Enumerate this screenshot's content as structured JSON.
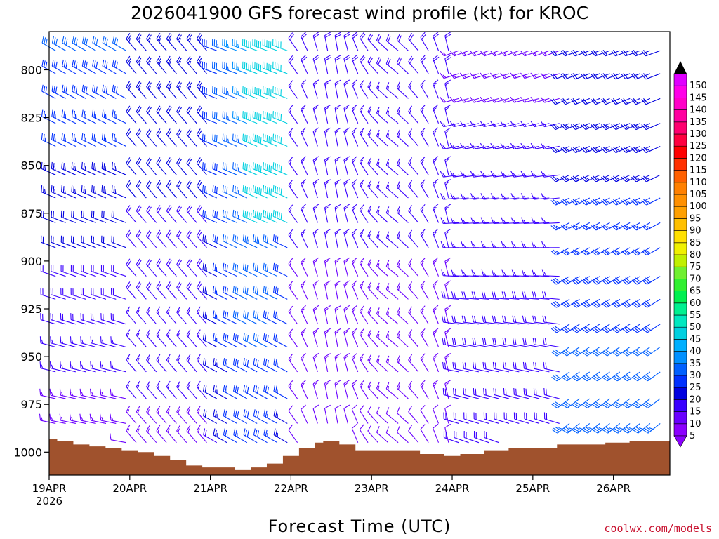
{
  "chart_data": {
    "type": "wind_barb_profile",
    "title": "2026041900 GFS forecast wind profile (kt) for KROC",
    "xlabel": "Forecast Time (UTC)",
    "ylabel": "",
    "credit": "coolwx.com/models",
    "y_axis": {
      "unit": "hPa",
      "range": [
        780,
        1012
      ],
      "ticks": [
        800,
        825,
        850,
        875,
        900,
        925,
        950,
        975,
        1000
      ],
      "tick_labels": [
        "800",
        "825",
        "850",
        "875",
        "900",
        "925",
        "950",
        "975",
        "1000"
      ]
    },
    "x_axis": {
      "unit": "days since 19APR 00Z",
      "range": [
        0,
        7.7
      ],
      "ticks": [
        0,
        1,
        2,
        3,
        4,
        5,
        6,
        7
      ],
      "tick_labels": [
        "19APR",
        "20APR",
        "21APR",
        "22APR",
        "23APR",
        "24APR",
        "25APR",
        "26APR"
      ],
      "year_label": "2026"
    },
    "levels_hpa": [
      790,
      802,
      815,
      828,
      840,
      855,
      867,
      880,
      893,
      908,
      920,
      933,
      945,
      958,
      972,
      985,
      995
    ],
    "time_step_days": 0.125,
    "terrain_surface_hpa": [
      [
        0,
        993
      ],
      [
        0.1,
        994
      ],
      [
        0.3,
        996
      ],
      [
        0.5,
        997
      ],
      [
        0.7,
        998
      ],
      [
        0.9,
        999
      ],
      [
        1.1,
        1000
      ],
      [
        1.3,
        1002
      ],
      [
        1.5,
        1004
      ],
      [
        1.7,
        1007
      ],
      [
        1.9,
        1008
      ],
      [
        2.1,
        1008
      ],
      [
        2.3,
        1009
      ],
      [
        2.5,
        1008
      ],
      [
        2.7,
        1006
      ],
      [
        2.9,
        1002
      ],
      [
        3.1,
        998
      ],
      [
        3.3,
        995
      ],
      [
        3.4,
        994
      ],
      [
        3.6,
        996
      ],
      [
        3.8,
        999
      ],
      [
        4.0,
        999
      ],
      [
        4.3,
        999
      ],
      [
        4.6,
        1001
      ],
      [
        4.9,
        1002
      ],
      [
        5.1,
        1001
      ],
      [
        5.4,
        999
      ],
      [
        5.7,
        998
      ],
      [
        6.0,
        998
      ],
      [
        6.3,
        996
      ],
      [
        6.6,
        996
      ],
      [
        6.9,
        995
      ],
      [
        7.2,
        994
      ],
      [
        7.5,
        994
      ],
      [
        7.7,
        994
      ]
    ],
    "colorbar": {
      "label_values": [
        "5",
        "10",
        "15",
        "20",
        "25",
        "30",
        "35",
        "40",
        "45",
        "50",
        "55",
        "60",
        "65",
        "70",
        "75",
        "80",
        "85",
        "90",
        "95",
        "100",
        "105",
        "110",
        "115",
        "120",
        "125",
        "130",
        "135",
        "140",
        "145",
        "150"
      ],
      "colors": [
        "#8b00ff",
        "#6a00ff",
        "#3a00ff",
        "#0000e0",
        "#0030ff",
        "#0060ff",
        "#0090ff",
        "#00b0ff",
        "#00d0e0",
        "#00e8c0",
        "#00f090",
        "#00f050",
        "#30f030",
        "#70f030",
        "#c0f000",
        "#f0f000",
        "#ffe000",
        "#ffc000",
        "#ffa000",
        "#ff9000",
        "#ff8000",
        "#ff6000",
        "#ff3000",
        "#ff0000",
        "#ff0040",
        "#ff0070",
        "#ff00a0",
        "#ff00c8",
        "#ff00e8",
        "#e000ff"
      ]
    }
  }
}
